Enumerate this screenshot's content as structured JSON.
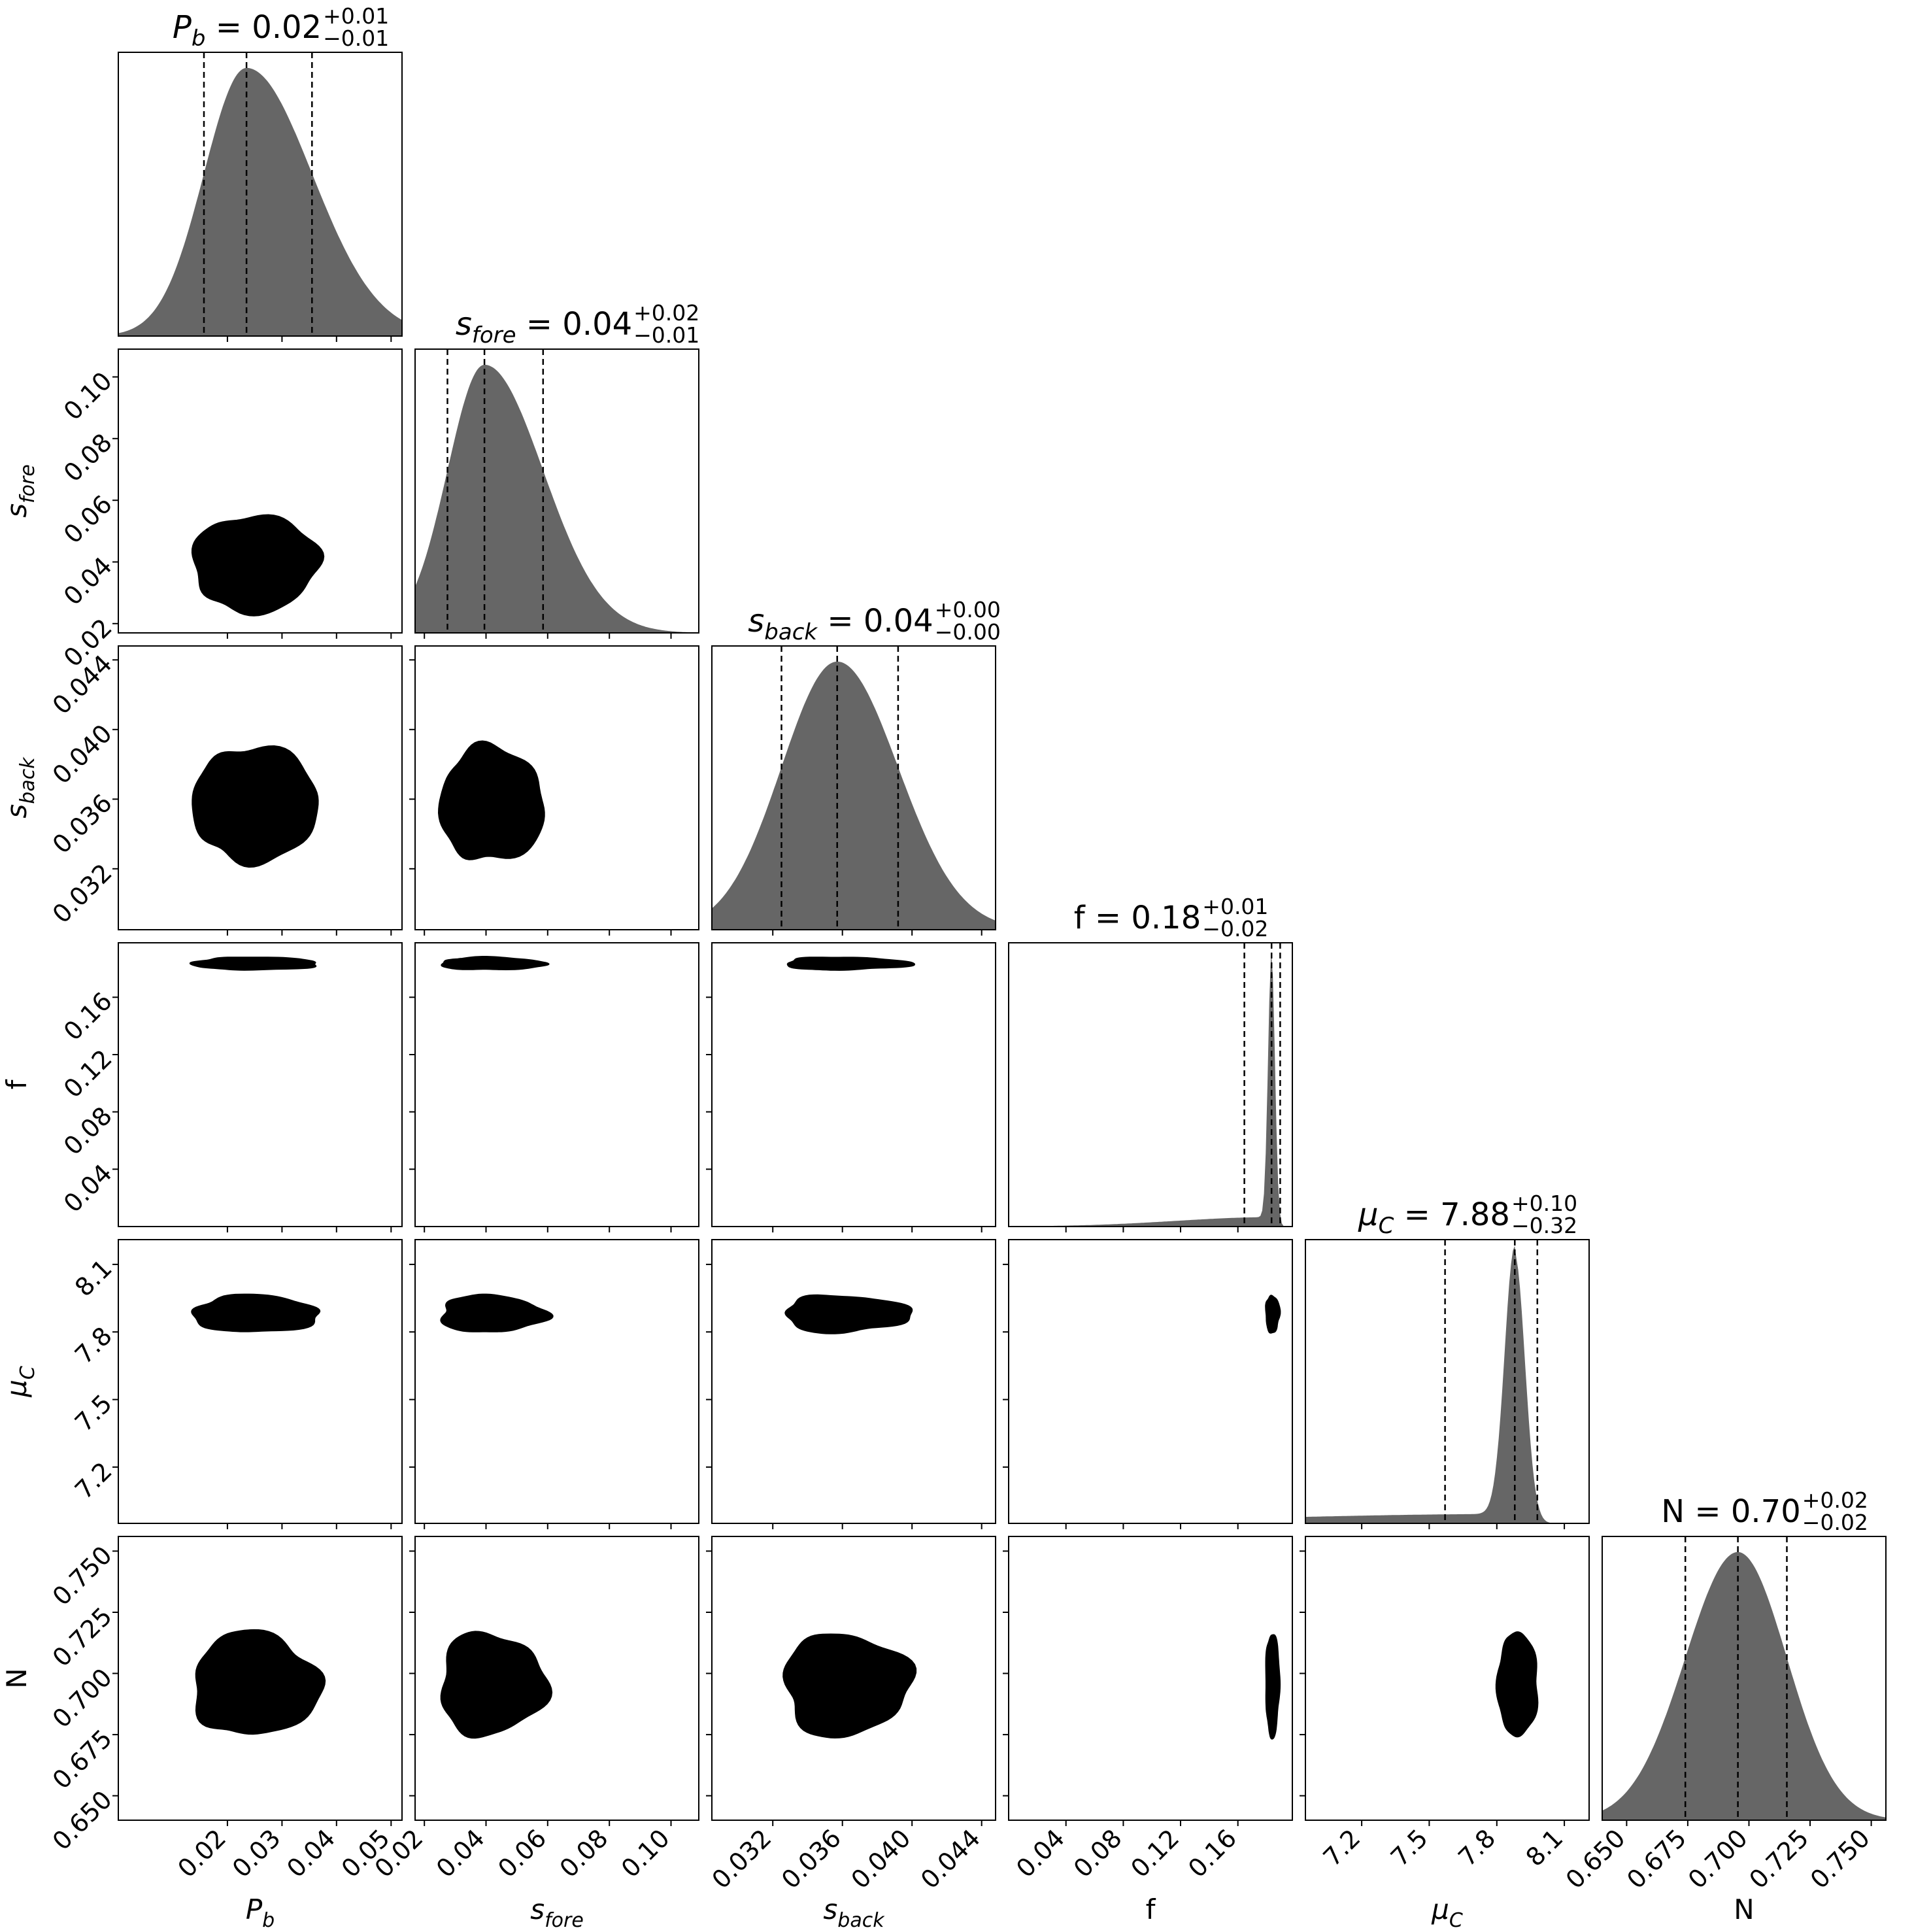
{
  "chart_data": {
    "type": "corner",
    "parameters": [
      {
        "key": "Pb",
        "label_main": "P",
        "label_sub": "b",
        "label_style": "italic",
        "title_value": "0.02",
        "title_plus": "+0.01",
        "title_minus": "−0.01",
        "range": [
          0.0,
          0.052
        ],
        "ticks": [
          "0.02",
          "0.03",
          "0.04",
          "0.05"
        ],
        "tick_values": [
          0.02,
          0.03,
          0.04,
          0.05
        ],
        "median": 0.0235,
        "q16": 0.0157,
        "q84": 0.0355,
        "sigma": 0.0058
      },
      {
        "key": "sfore",
        "label_main": "s",
        "label_sub": "fore",
        "label_style": "italic",
        "title_value": "0.04",
        "title_plus": "+0.02",
        "title_minus": "−0.01",
        "range": [
          0.017,
          0.109
        ],
        "ticks": [
          "0.02",
          "0.04",
          "0.06",
          "0.08",
          "0.10"
        ],
        "tick_values": [
          0.02,
          0.04,
          0.06,
          0.08,
          0.1
        ],
        "median": 0.0395,
        "q16": 0.0275,
        "q84": 0.0585,
        "sigma": 0.0085
      },
      {
        "key": "sback",
        "label_main": "s",
        "label_sub": "back",
        "label_style": "italic",
        "title_value": "0.04",
        "title_plus": "+0.00",
        "title_minus": "−0.00",
        "range": [
          0.0285,
          0.0448
        ],
        "ticks": [
          "0.032",
          "0.036",
          "0.040",
          "0.044"
        ],
        "tick_values": [
          0.032,
          0.036,
          0.04,
          0.044
        ],
        "median": 0.0357,
        "q16": 0.0325,
        "q84": 0.0392,
        "sigma": 0.0018
      },
      {
        "key": "f",
        "label_main": "f",
        "label_sub": "",
        "label_style": "normal",
        "title_value": "0.18",
        "title_plus": "+0.01",
        "title_minus": "−0.02",
        "range": [
          0.0,
          0.198
        ],
        "ticks": [
          "0.04",
          "0.08",
          "0.12",
          "0.16"
        ],
        "tick_values": [
          0.04,
          0.08,
          0.12,
          0.16
        ],
        "median": 0.1835,
        "q16": 0.1645,
        "q84": 0.1895,
        "sigma": 0.0024
      },
      {
        "key": "muC",
        "label_main": "μ",
        "label_sub": "C",
        "label_style": "italic",
        "title_value": "7.88",
        "title_plus": "+0.10",
        "title_minus": "−0.32",
        "range": [
          6.95,
          8.21
        ],
        "ticks": [
          "7.2",
          "7.5",
          "7.8",
          "8.1"
        ],
        "tick_values": [
          7.2,
          7.5,
          7.8,
          8.1
        ],
        "median": 7.88,
        "q16": 7.57,
        "q84": 7.98,
        "sigma": 0.045
      },
      {
        "key": "N",
        "label_main": "N",
        "label_sub": "",
        "label_style": "normal",
        "title_value": "0.70",
        "title_plus": "+0.02",
        "title_minus": "−0.02",
        "range": [
          0.64,
          0.756
        ],
        "ticks": [
          "0.650",
          "0.675",
          "0.700",
          "0.725",
          "0.750"
        ],
        "tick_values": [
          0.65,
          0.675,
          0.7,
          0.725,
          0.75
        ],
        "median": 0.6955,
        "q16": 0.674,
        "q84": 0.7155,
        "sigma": 0.0115
      }
    ],
    "contour_levels": [
      0.5,
      1.0,
      1.5,
      2.0
    ],
    "colors": {
      "hist_fill": "#666666",
      "contour_fills": [
        "#d8d8d8",
        "#adadad",
        "#7d7d7d",
        "#000000"
      ],
      "line": "#000000"
    }
  }
}
